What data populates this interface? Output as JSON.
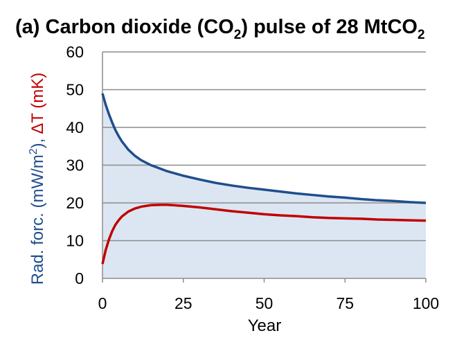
{
  "chart_data": {
    "type": "line",
    "title": {
      "prefix": "(a) Carbon dioxide (CO",
      "sub1": "2",
      "middle": ") pulse of 28 MtCO",
      "sub2": "2"
    },
    "xlabel": "Year",
    "ylabel": {
      "part1": "Rad. forc. (mW/m",
      "sup": "2",
      "part2": "),",
      "part3": "ΔT (mK)",
      "color1": "#1f4e8c",
      "color2": "#c00000"
    },
    "xlim": [
      0,
      100
    ],
    "ylim": [
      0,
      60
    ],
    "xticks": [
      0,
      25,
      50,
      75,
      100
    ],
    "yticks": [
      0,
      10,
      20,
      30,
      40,
      50,
      60
    ],
    "grid": true,
    "series": [
      {
        "key": "radiative-forcing",
        "color": "#1f4e8c",
        "fill": "#dce6f2",
        "x": [
          0,
          1,
          2,
          3,
          4,
          5,
          6,
          8,
          10,
          12,
          15,
          20,
          25,
          30,
          35,
          40,
          45,
          50,
          55,
          60,
          65,
          70,
          75,
          80,
          85,
          90,
          95,
          100
        ],
        "y": [
          49,
          46,
          43.5,
          41.3,
          39.3,
          37.7,
          36.3,
          34.1,
          32.5,
          31.3,
          30,
          28.4,
          27.2,
          26.2,
          25.3,
          24.6,
          24,
          23.5,
          23,
          22.5,
          22.1,
          21.7,
          21.4,
          21,
          20.7,
          20.5,
          20.2,
          20
        ]
      },
      {
        "key": "temperature-change",
        "color": "#c00000",
        "x": [
          0,
          1,
          2,
          3,
          4,
          5,
          6,
          8,
          10,
          12,
          15,
          18,
          20,
          25,
          30,
          35,
          40,
          45,
          50,
          55,
          60,
          65,
          70,
          75,
          80,
          85,
          90,
          95,
          100
        ],
        "y": [
          3.8,
          7.5,
          10.3,
          12.5,
          14.2,
          15.4,
          16.4,
          17.7,
          18.5,
          19,
          19.4,
          19.5,
          19.5,
          19.2,
          18.8,
          18.3,
          17.8,
          17.4,
          17,
          16.7,
          16.5,
          16.2,
          16,
          15.9,
          15.8,
          15.6,
          15.5,
          15.4,
          15.3
        ]
      }
    ]
  }
}
